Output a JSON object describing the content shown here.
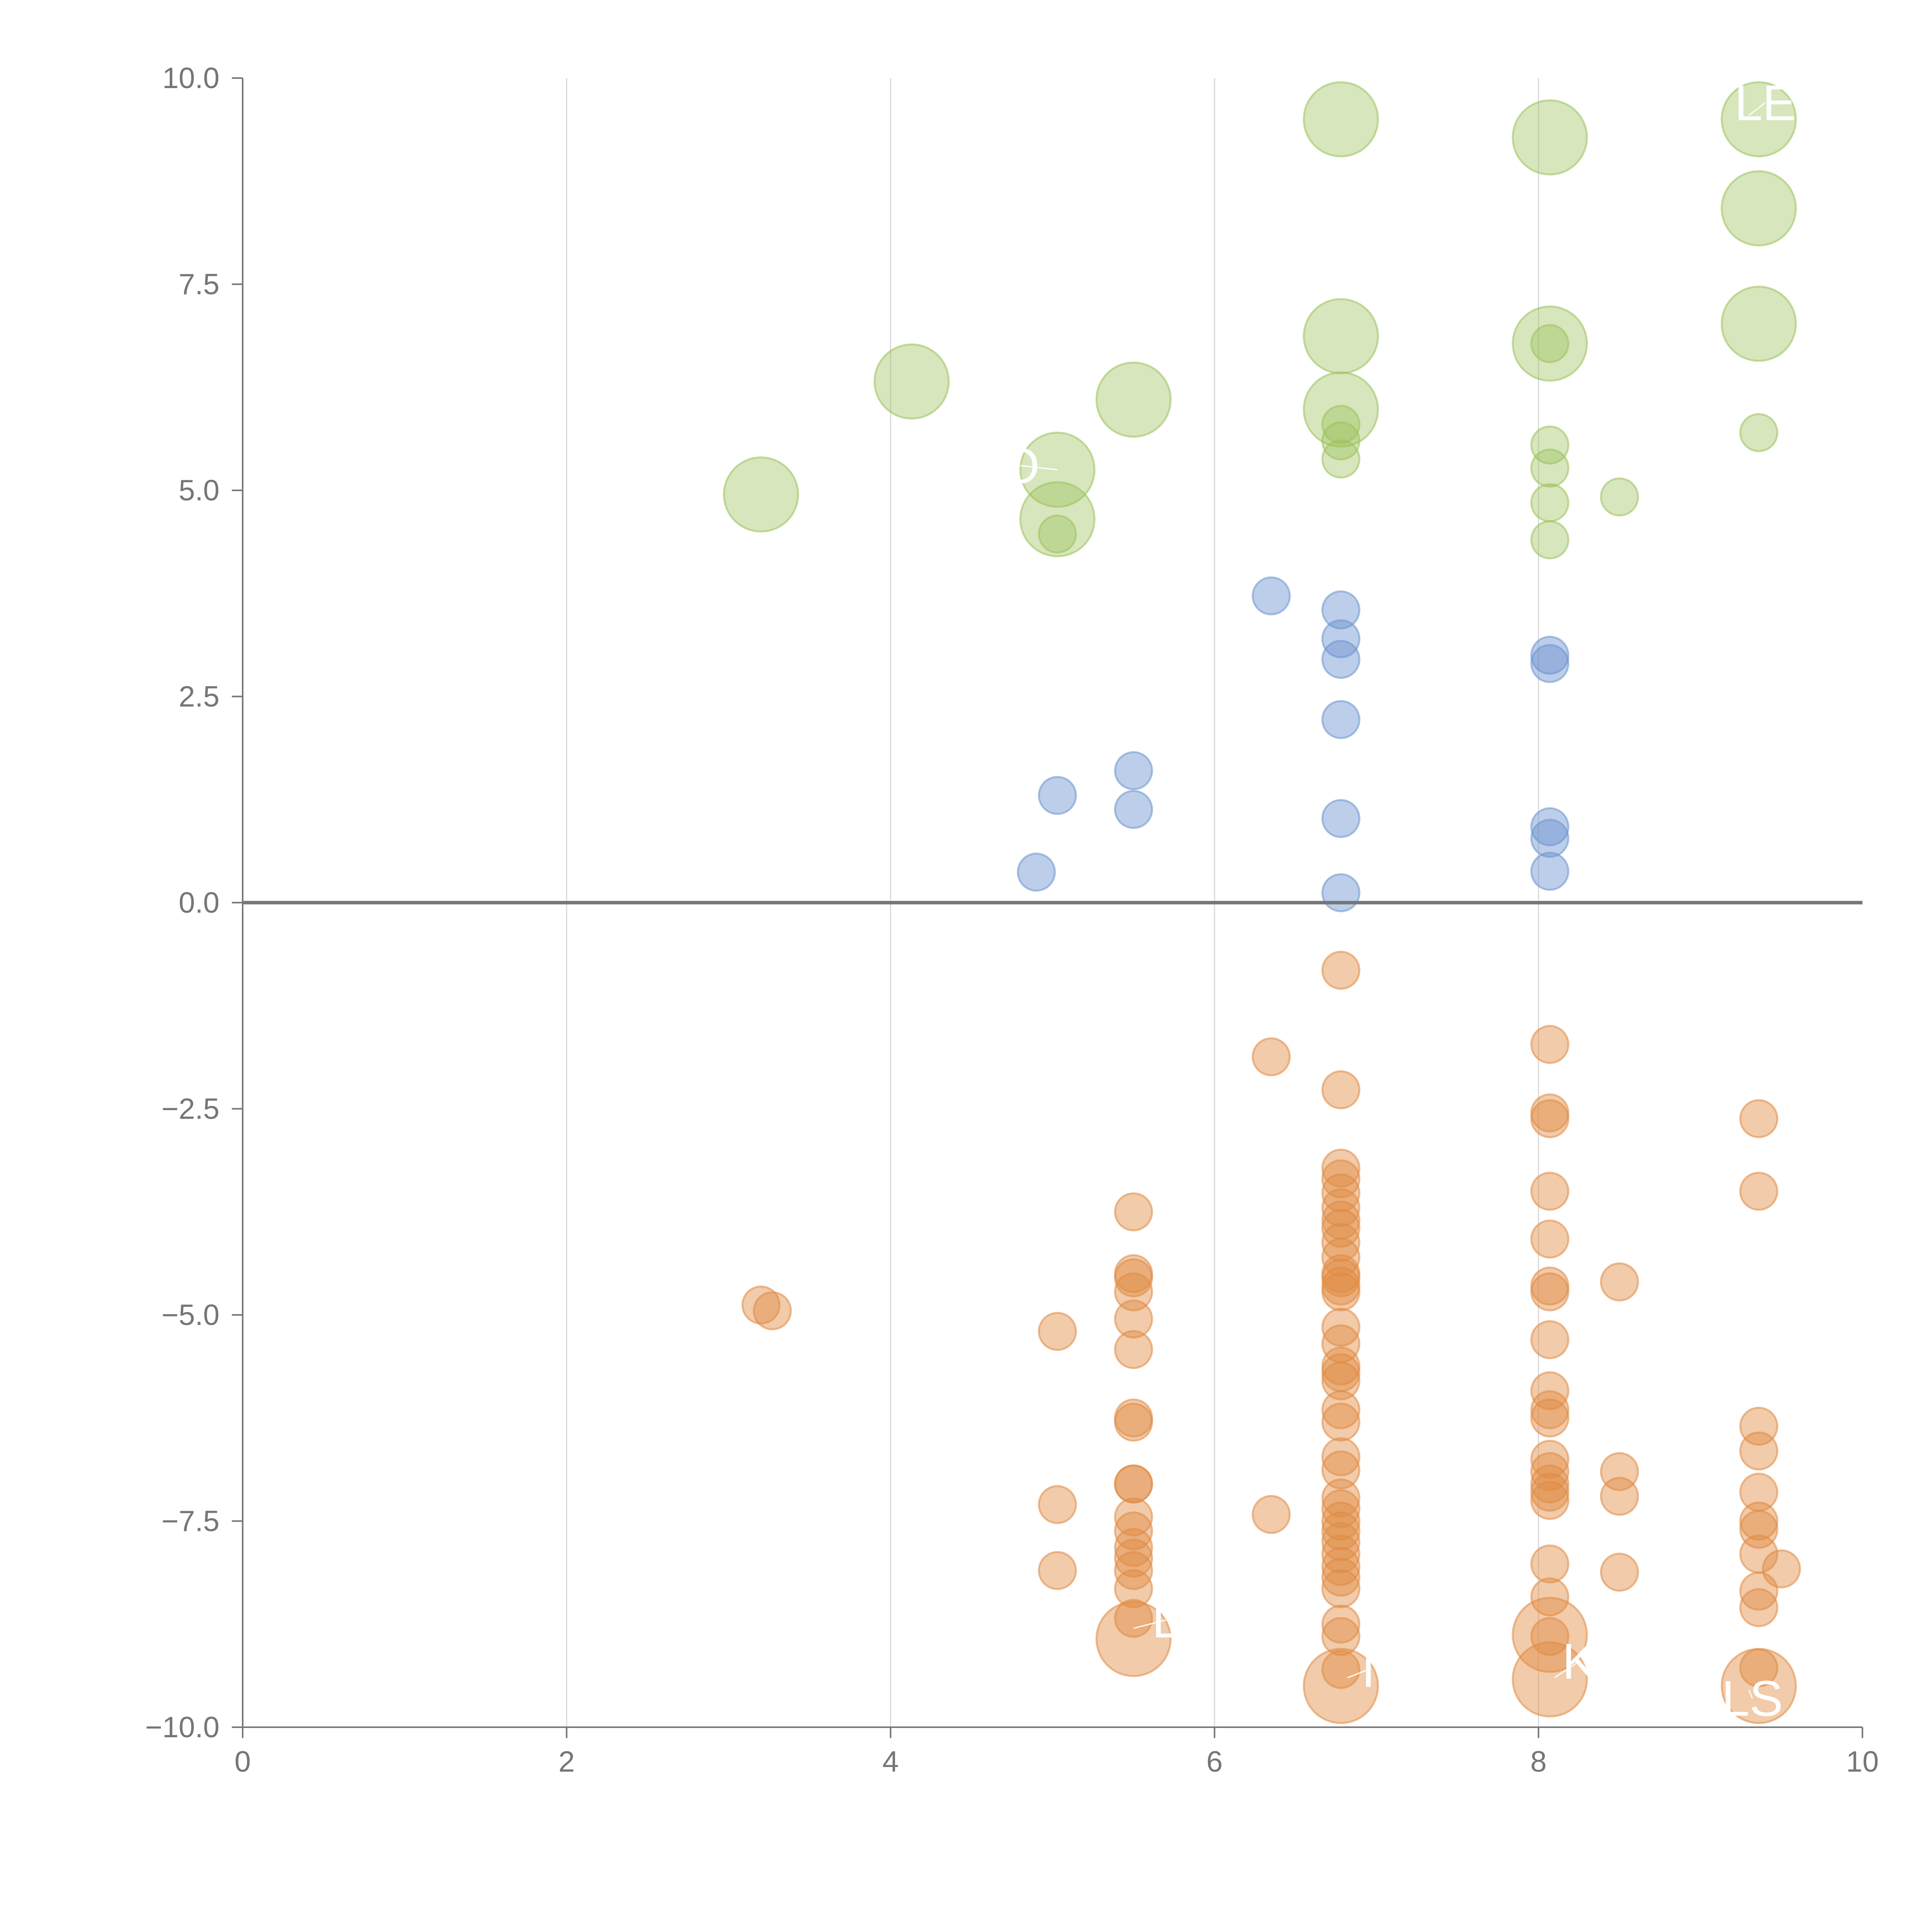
{
  "chart_data": {
    "type": "scatter",
    "title": "",
    "xlabel": "",
    "ylabel": "",
    "xlim": [
      0,
      10
    ],
    "ylim": [
      -10,
      10
    ],
    "x_ticks": [
      0,
      2,
      4,
      6,
      8,
      10
    ],
    "x_tick_labels": [
      "0",
      "2",
      "4",
      "6",
      "8",
      "10"
    ],
    "y_ticks": [
      10,
      7.5,
      5,
      2.5,
      0,
      -2.5,
      -5,
      -7.5,
      -10
    ],
    "y_tick_labels": [
      "10.0",
      "7.5",
      "5.0",
      "2.5",
      "0.0",
      "−2.5",
      "−5.0",
      "−7.5",
      "−10.0"
    ],
    "vertical_grid": true,
    "horizontal_grid": false,
    "zero_line": true,
    "series": [
      {
        "name": "green",
        "color": "#9bc159",
        "fill_opacity": 0.4,
        "points": [
          {
            "x": 3.2,
            "y": 4.95,
            "size": 3
          },
          {
            "x": 4.13,
            "y": 6.32,
            "size": 3
          },
          {
            "x": 5.03,
            "y": 5.25,
            "size": 3
          },
          {
            "x": 5.03,
            "y": 4.65,
            "size": 3
          },
          {
            "x": 5.03,
            "y": 4.47,
            "size": 1
          },
          {
            "x": 5.5,
            "y": 6.1,
            "size": 3
          },
          {
            "x": 6.78,
            "y": 9.5,
            "size": 3
          },
          {
            "x": 6.78,
            "y": 6.87,
            "size": 3
          },
          {
            "x": 6.78,
            "y": 5.98,
            "size": 3
          },
          {
            "x": 6.78,
            "y": 5.8,
            "size": 1
          },
          {
            "x": 6.78,
            "y": 5.6,
            "size": 1
          },
          {
            "x": 6.78,
            "y": 5.38,
            "size": 1
          },
          {
            "x": 8.07,
            "y": 9.28,
            "size": 3
          },
          {
            "x": 8.07,
            "y": 6.78,
            "size": 3
          },
          {
            "x": 8.07,
            "y": 6.78,
            "size": 1
          },
          {
            "x": 8.07,
            "y": 5.55,
            "size": 1
          },
          {
            "x": 8.07,
            "y": 5.27,
            "size": 1
          },
          {
            "x": 8.07,
            "y": 4.85,
            "size": 1
          },
          {
            "x": 8.07,
            "y": 4.4,
            "size": 1
          },
          {
            "x": 8.5,
            "y": 4.92,
            "size": 1
          },
          {
            "x": 9.36,
            "y": 9.5,
            "size": 3
          },
          {
            "x": 9.36,
            "y": 8.42,
            "size": 3
          },
          {
            "x": 9.36,
            "y": 7.02,
            "size": 3
          },
          {
            "x": 9.36,
            "y": 5.7,
            "size": 1
          }
        ]
      },
      {
        "name": "blue",
        "color": "#6b93cf",
        "fill_opacity": 0.45,
        "points": [
          {
            "x": 4.9,
            "y": 0.37,
            "size": 1
          },
          {
            "x": 5.03,
            "y": 1.3,
            "size": 1
          },
          {
            "x": 5.5,
            "y": 1.6,
            "size": 1
          },
          {
            "x": 5.5,
            "y": 1.13,
            "size": 1
          },
          {
            "x": 6.35,
            "y": 3.72,
            "size": 1
          },
          {
            "x": 6.78,
            "y": 3.55,
            "size": 1
          },
          {
            "x": 6.78,
            "y": 3.2,
            "size": 1
          },
          {
            "x": 6.78,
            "y": 2.95,
            "size": 1
          },
          {
            "x": 6.78,
            "y": 2.22,
            "size": 1
          },
          {
            "x": 6.78,
            "y": 1.02,
            "size": 1
          },
          {
            "x": 6.78,
            "y": 0.12,
            "size": 1
          },
          {
            "x": 8.07,
            "y": 3.0,
            "size": 1
          },
          {
            "x": 8.07,
            "y": 2.9,
            "size": 1
          },
          {
            "x": 8.07,
            "y": 0.92,
            "size": 1
          },
          {
            "x": 8.07,
            "y": 0.78,
            "size": 1
          },
          {
            "x": 8.07,
            "y": 0.38,
            "size": 1
          }
        ]
      },
      {
        "name": "orange",
        "color": "#e08b43",
        "fill_opacity": 0.45,
        "points": [
          {
            "x": 3.2,
            "y": -4.88,
            "size": 1
          },
          {
            "x": 3.27,
            "y": -4.95,
            "size": 1
          },
          {
            "x": 5.03,
            "y": -5.2,
            "size": 1
          },
          {
            "x": 5.03,
            "y": -7.3,
            "size": 1
          },
          {
            "x": 5.03,
            "y": -8.1,
            "size": 1
          },
          {
            "x": 5.5,
            "y": -3.75,
            "size": 1
          },
          {
            "x": 5.5,
            "y": -4.5,
            "size": 1
          },
          {
            "x": 5.5,
            "y": -4.55,
            "size": 1
          },
          {
            "x": 5.5,
            "y": -4.72,
            "size": 1
          },
          {
            "x": 5.5,
            "y": -5.05,
            "size": 1
          },
          {
            "x": 5.5,
            "y": -5.42,
            "size": 1
          },
          {
            "x": 5.5,
            "y": -6.25,
            "size": 1
          },
          {
            "x": 5.5,
            "y": -6.3,
            "size": 1
          },
          {
            "x": 5.5,
            "y": -7.05,
            "size": 1
          },
          {
            "x": 5.5,
            "y": -7.05,
            "size": 1
          },
          {
            "x": 5.5,
            "y": -7.45,
            "size": 1
          },
          {
            "x": 5.5,
            "y": -7.62,
            "size": 1
          },
          {
            "x": 5.5,
            "y": -7.82,
            "size": 1
          },
          {
            "x": 5.5,
            "y": -7.95,
            "size": 1
          },
          {
            "x": 5.5,
            "y": -8.1,
            "size": 1
          },
          {
            "x": 5.5,
            "y": -8.32,
            "size": 1
          },
          {
            "x": 5.5,
            "y": -8.68,
            "size": 1
          },
          {
            "x": 5.5,
            "y": -8.93,
            "size": 3
          },
          {
            "x": 6.35,
            "y": -1.87,
            "size": 1
          },
          {
            "x": 6.35,
            "y": -7.42,
            "size": 1
          },
          {
            "x": 6.78,
            "y": -0.82,
            "size": 1
          },
          {
            "x": 6.78,
            "y": -2.27,
            "size": 1
          },
          {
            "x": 6.78,
            "y": -3.22,
            "size": 1
          },
          {
            "x": 6.78,
            "y": -3.35,
            "size": 1
          },
          {
            "x": 6.78,
            "y": -3.52,
            "size": 1
          },
          {
            "x": 6.78,
            "y": -3.7,
            "size": 1
          },
          {
            "x": 6.78,
            "y": -3.85,
            "size": 1
          },
          {
            "x": 6.78,
            "y": -3.95,
            "size": 1
          },
          {
            "x": 6.78,
            "y": -4.12,
            "size": 1
          },
          {
            "x": 6.78,
            "y": -4.3,
            "size": 1
          },
          {
            "x": 6.78,
            "y": -4.5,
            "size": 1
          },
          {
            "x": 6.78,
            "y": -4.55,
            "size": 1
          },
          {
            "x": 6.78,
            "y": -4.65,
            "size": 1
          },
          {
            "x": 6.78,
            "y": -4.72,
            "size": 1
          },
          {
            "x": 6.78,
            "y": -5.15,
            "size": 1
          },
          {
            "x": 6.78,
            "y": -5.35,
            "size": 1
          },
          {
            "x": 6.78,
            "y": -5.62,
            "size": 1
          },
          {
            "x": 6.78,
            "y": -5.7,
            "size": 1
          },
          {
            "x": 6.78,
            "y": -5.8,
            "size": 1
          },
          {
            "x": 6.78,
            "y": -6.15,
            "size": 1
          },
          {
            "x": 6.78,
            "y": -6.3,
            "size": 1
          },
          {
            "x": 6.78,
            "y": -6.72,
            "size": 1
          },
          {
            "x": 6.78,
            "y": -6.88,
            "size": 1
          },
          {
            "x": 6.78,
            "y": -7.22,
            "size": 1
          },
          {
            "x": 6.78,
            "y": -7.35,
            "size": 1
          },
          {
            "x": 6.78,
            "y": -7.5,
            "size": 1
          },
          {
            "x": 6.78,
            "y": -7.62,
            "size": 1
          },
          {
            "x": 6.78,
            "y": -7.75,
            "size": 1
          },
          {
            "x": 6.78,
            "y": -7.9,
            "size": 1
          },
          {
            "x": 6.78,
            "y": -8.05,
            "size": 1
          },
          {
            "x": 6.78,
            "y": -8.18,
            "size": 1
          },
          {
            "x": 6.78,
            "y": -8.32,
            "size": 1
          },
          {
            "x": 6.78,
            "y": -8.75,
            "size": 1
          },
          {
            "x": 6.78,
            "y": -8.9,
            "size": 1
          },
          {
            "x": 6.78,
            "y": -9.3,
            "size": 1
          },
          {
            "x": 6.78,
            "y": -9.5,
            "size": 3
          },
          {
            "x": 8.07,
            "y": -1.72,
            "size": 1
          },
          {
            "x": 8.07,
            "y": -2.55,
            "size": 1
          },
          {
            "x": 8.07,
            "y": -2.62,
            "size": 1
          },
          {
            "x": 8.07,
            "y": -3.5,
            "size": 1
          },
          {
            "x": 8.07,
            "y": -4.08,
            "size": 1
          },
          {
            "x": 8.07,
            "y": -4.65,
            "size": 1
          },
          {
            "x": 8.07,
            "y": -4.72,
            "size": 1
          },
          {
            "x": 8.07,
            "y": -5.3,
            "size": 1
          },
          {
            "x": 8.07,
            "y": -5.92,
            "size": 1
          },
          {
            "x": 8.07,
            "y": -6.15,
            "size": 1
          },
          {
            "x": 8.07,
            "y": -6.25,
            "size": 1
          },
          {
            "x": 8.07,
            "y": -6.75,
            "size": 1
          },
          {
            "x": 8.07,
            "y": -6.9,
            "size": 1
          },
          {
            "x": 8.07,
            "y": -7.05,
            "size": 1
          },
          {
            "x": 8.07,
            "y": -7.15,
            "size": 1
          },
          {
            "x": 8.07,
            "y": -7.25,
            "size": 1
          },
          {
            "x": 8.07,
            "y": -8.02,
            "size": 1
          },
          {
            "x": 8.07,
            "y": -8.42,
            "size": 1
          },
          {
            "x": 8.07,
            "y": -8.88,
            "size": 3
          },
          {
            "x": 8.07,
            "y": -8.9,
            "size": 1
          },
          {
            "x": 8.07,
            "y": -9.42,
            "size": 3
          },
          {
            "x": 8.5,
            "y": -4.6,
            "size": 1
          },
          {
            "x": 8.5,
            "y": -6.9,
            "size": 1
          },
          {
            "x": 8.5,
            "y": -7.2,
            "size": 1
          },
          {
            "x": 8.5,
            "y": -8.12,
            "size": 1
          },
          {
            "x": 9.36,
            "y": -2.62,
            "size": 1
          },
          {
            "x": 9.36,
            "y": -3.5,
            "size": 1
          },
          {
            "x": 9.36,
            "y": -6.35,
            "size": 1
          },
          {
            "x": 9.36,
            "y": -6.65,
            "size": 1
          },
          {
            "x": 9.36,
            "y": -7.15,
            "size": 1
          },
          {
            "x": 9.36,
            "y": -7.5,
            "size": 1
          },
          {
            "x": 9.36,
            "y": -7.6,
            "size": 1
          },
          {
            "x": 9.36,
            "y": -7.9,
            "size": 1
          },
          {
            "x": 9.36,
            "y": -8.35,
            "size": 1
          },
          {
            "x": 9.36,
            "y": -8.55,
            "size": 1
          },
          {
            "x": 9.36,
            "y": -9.28,
            "size": 1
          },
          {
            "x": 9.36,
            "y": -9.5,
            "size": 3
          },
          {
            "x": 9.5,
            "y": -8.08,
            "size": 1
          }
        ]
      }
    ],
    "annotations": [
      {
        "text": "LE",
        "anchor_x": 9.3,
        "anchor_y": 9.55,
        "text_x": 9.4,
        "text_y": 9.7
      },
      {
        "text": "O",
        "anchor_x": 5.03,
        "anchor_y": 5.25,
        "text_x": 4.8,
        "text_y": 5.3
      },
      {
        "text": "L",
        "anchor_x": 5.5,
        "anchor_y": -8.8,
        "text_x": 5.7,
        "text_y": -8.7
      },
      {
        "text": "I",
        "anchor_x": 6.82,
        "anchor_y": -9.4,
        "text_x": 6.95,
        "text_y": -9.3
      },
      {
        "text": "K",
        "anchor_x": 8.1,
        "anchor_y": -9.4,
        "text_x": 8.25,
        "text_y": -9.2
      },
      {
        "text": "LS",
        "anchor_x": 9.3,
        "anchor_y": -9.55,
        "text_x": 9.32,
        "text_y": -9.65
      }
    ]
  }
}
